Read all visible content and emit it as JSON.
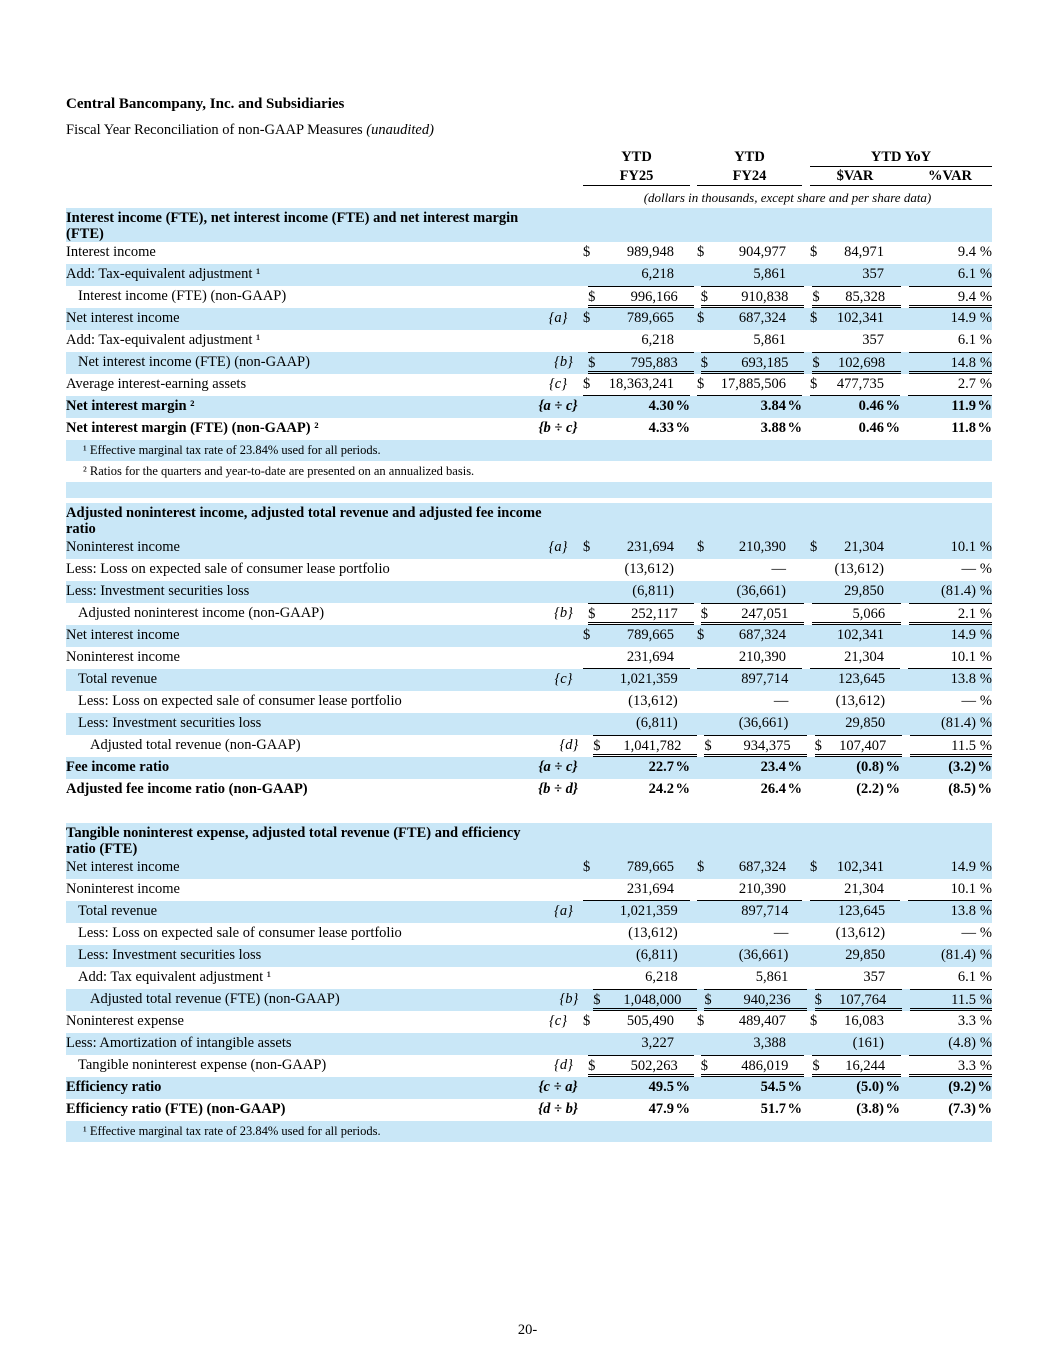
{
  "doc": {
    "company": "Central Bancompany, Inc. and Subsidiaries",
    "subtitle": "Fiscal Year Reconciliation of non-GAAP Measures",
    "subtitle_note": "(unaudited)",
    "units_note": "(dollars in thousands, except share and per share data)",
    "page_number": "20-"
  },
  "columns": {
    "ytd1": "YTD",
    "fy25": "FY25",
    "ytd2": "YTD",
    "fy24": "FY24",
    "yoy": "YTD YoY",
    "dvar": "$VAR",
    "pvar": "%VAR"
  },
  "colors": {
    "row_shade": "#c9e7f7"
  },
  "sections": [
    {
      "title": [
        "Interest income (FTE), net interest income (FTE) and net interest margin",
        "(FTE)"
      ],
      "rows": [
        {
          "label": "Interest income",
          "ind": 0,
          "ref": "",
          "shade": false,
          "c": [
            [
              "$",
              "989,948",
              ""
            ],
            [
              "$",
              "904,977",
              ""
            ],
            [
              "$",
              "84,971",
              ""
            ],
            [
              "",
              "9.4",
              "%"
            ]
          ]
        },
        {
          "label": "Add: Tax-equivalent adjustment ¹",
          "ind": 0,
          "ref": "",
          "shade": true,
          "c": [
            [
              "",
              "6,218",
              ""
            ],
            [
              "",
              "5,861",
              ""
            ],
            [
              "",
              "357",
              ""
            ],
            [
              "",
              "6.1",
              "%"
            ]
          ]
        },
        {
          "label": "Interest income (FTE) (non-GAAP)",
          "ind": 1,
          "ref": "",
          "shade": false,
          "top": true,
          "dbl": true,
          "c": [
            [
              "$",
              "996,166",
              ""
            ],
            [
              "$",
              "910,838",
              ""
            ],
            [
              "$",
              "85,328",
              ""
            ],
            [
              "",
              "9.4",
              "%"
            ]
          ]
        },
        {
          "label": "Net interest income",
          "ind": 0,
          "ref": "{a}",
          "shade": true,
          "c": [
            [
              "$",
              "789,665",
              ""
            ],
            [
              "$",
              "687,324",
              ""
            ],
            [
              "$",
              "102,341",
              ""
            ],
            [
              "",
              "14.9",
              "%"
            ]
          ]
        },
        {
          "label": "Add: Tax-equivalent adjustment ¹",
          "ind": 0,
          "ref": "",
          "shade": false,
          "c": [
            [
              "",
              "6,218",
              ""
            ],
            [
              "",
              "5,861",
              ""
            ],
            [
              "",
              "357",
              ""
            ],
            [
              "",
              "6.1",
              "%"
            ]
          ]
        },
        {
          "label": "Net interest income (FTE) (non-GAAP)",
          "ind": 1,
          "ref": "{b}",
          "shade": true,
          "top": true,
          "dbl": true,
          "c": [
            [
              "$",
              "795,883",
              ""
            ],
            [
              "$",
              "693,185",
              ""
            ],
            [
              "$",
              "102,698",
              ""
            ],
            [
              "",
              "14.8",
              "%"
            ]
          ]
        },
        {
          "label": "Average interest-earning assets",
          "ind": 0,
          "ref": "{c}",
          "shade": false,
          "bot": true,
          "c": [
            [
              "$",
              "18,363,241",
              ""
            ],
            [
              "$",
              "17,885,506",
              ""
            ],
            [
              "$",
              "477,735",
              ""
            ],
            [
              "",
              "2.7",
              "%"
            ]
          ]
        },
        {
          "label": "Net interest margin ²",
          "ind": 0,
          "ref": "{a ÷ c}",
          "bold": true,
          "shade": true,
          "c": [
            [
              "",
              "4.30",
              "%"
            ],
            [
              "",
              "3.84",
              "%"
            ],
            [
              "",
              "0.46",
              "%"
            ],
            [
              "",
              "11.9",
              "%"
            ]
          ]
        },
        {
          "label": "Net interest margin (FTE) (non-GAAP) ²",
          "ind": 0,
          "ref": "{b ÷ c}",
          "bold": true,
          "shade": false,
          "c": [
            [
              "",
              "4.33",
              "%"
            ],
            [
              "",
              "3.88",
              "%"
            ],
            [
              "",
              "0.46",
              "%"
            ],
            [
              "",
              "11.8",
              "%"
            ]
          ]
        },
        {
          "type": "note",
          "shade": true,
          "text": "¹ Effective marginal tax rate of 23.84% used for all periods."
        },
        {
          "type": "note",
          "shade": false,
          "text": "² Ratios for the quarters and year-to-date are presented on an annualized basis."
        },
        {
          "type": "spacer",
          "shade": true
        }
      ]
    },
    {
      "title": [
        "Adjusted noninterest income, adjusted total revenue and adjusted fee income",
        "ratio"
      ],
      "rows": [
        {
          "label": "Noninterest income",
          "ind": 0,
          "ref": "{a}",
          "shade": true,
          "c": [
            [
              "$",
              "231,694",
              ""
            ],
            [
              "$",
              "210,390",
              ""
            ],
            [
              "$",
              "21,304",
              ""
            ],
            [
              "",
              "10.1",
              "%"
            ]
          ]
        },
        {
          "label": "Less: Loss on expected sale of consumer lease portfolio",
          "ind": 0,
          "ref": "",
          "shade": false,
          "c": [
            [
              "",
              "(13,612)",
              ""
            ],
            [
              "",
              "—",
              ""
            ],
            [
              "",
              "(13,612)",
              ""
            ],
            [
              "",
              "—",
              "%"
            ]
          ]
        },
        {
          "label": "Less: Investment securities loss",
          "ind": 0,
          "ref": "",
          "shade": true,
          "c": [
            [
              "",
              "(6,811)",
              ""
            ],
            [
              "",
              "(36,661)",
              ""
            ],
            [
              "",
              "29,850",
              ""
            ],
            [
              "",
              "(81.4)",
              "%"
            ]
          ]
        },
        {
          "label": "Adjusted noninterest income (non-GAAP)",
          "ind": 1,
          "ref": "{b}",
          "shade": false,
          "top": true,
          "dbl": true,
          "c": [
            [
              "$",
              "252,117",
              ""
            ],
            [
              "$",
              "247,051",
              ""
            ],
            [
              "",
              "5,066",
              ""
            ],
            [
              "",
              "2.1",
              "%"
            ]
          ]
        },
        {
          "label": "Net interest income",
          "ind": 0,
          "ref": "",
          "shade": true,
          "c": [
            [
              "$",
              "789,665",
              ""
            ],
            [
              "$",
              "687,324",
              ""
            ],
            [
              "",
              "102,341",
              ""
            ],
            [
              "",
              "14.9",
              "%"
            ]
          ]
        },
        {
          "label": "Noninterest income",
          "ind": 0,
          "ref": "",
          "shade": false,
          "bot": true,
          "c": [
            [
              "",
              "231,694",
              ""
            ],
            [
              "",
              "210,390",
              ""
            ],
            [
              "",
              "21,304",
              ""
            ],
            [
              "",
              "10.1",
              "%"
            ]
          ]
        },
        {
          "label": "Total revenue",
          "ind": 1,
          "ref": "{c}",
          "shade": true,
          "c": [
            [
              "",
              "1,021,359",
              ""
            ],
            [
              "",
              "897,714",
              ""
            ],
            [
              "",
              "123,645",
              ""
            ],
            [
              "",
              "13.8",
              "%"
            ]
          ]
        },
        {
          "label": "Less: Loss on expected sale of consumer lease portfolio",
          "ind": 1,
          "ref": "",
          "shade": false,
          "c": [
            [
              "",
              "(13,612)",
              ""
            ],
            [
              "",
              "—",
              ""
            ],
            [
              "",
              "(13,612)",
              ""
            ],
            [
              "",
              "—",
              "%"
            ]
          ]
        },
        {
          "label": "Less: Investment securities loss",
          "ind": 1,
          "ref": "",
          "shade": true,
          "c": [
            [
              "",
              "(6,811)",
              ""
            ],
            [
              "",
              "(36,661)",
              ""
            ],
            [
              "",
              "29,850",
              ""
            ],
            [
              "",
              "(81.4)",
              "%"
            ]
          ]
        },
        {
          "label": "Adjusted total revenue (non-GAAP)",
          "ind": 2,
          "ref": "{d}",
          "shade": false,
          "top": true,
          "dbl": true,
          "c": [
            [
              "$",
              "1,041,782",
              ""
            ],
            [
              "$",
              "934,375",
              ""
            ],
            [
              "$",
              "107,407",
              ""
            ],
            [
              "",
              "11.5",
              "%"
            ]
          ]
        },
        {
          "label": "Fee income ratio",
          "ind": 0,
          "ref": "{a ÷ c}",
          "bold": true,
          "shade": true,
          "c": [
            [
              "",
              "22.7",
              "%"
            ],
            [
              "",
              "23.4",
              "%"
            ],
            [
              "",
              "(0.8)",
              "%"
            ],
            [
              "",
              "(3.2)",
              "%"
            ]
          ]
        },
        {
          "label": "Adjusted fee income ratio (non-GAAP)",
          "ind": 0,
          "ref": "{b ÷ d}",
          "bold": true,
          "shade": false,
          "c": [
            [
              "",
              "24.2",
              "%"
            ],
            [
              "",
              "26.4",
              "%"
            ],
            [
              "",
              "(2.2)",
              "%"
            ],
            [
              "",
              "(8.5)",
              "%"
            ]
          ]
        }
      ]
    },
    {
      "title": [
        "Tangible noninterest expense, adjusted total revenue (FTE) and efficiency",
        "ratio (FTE)"
      ],
      "rows": [
        {
          "label": "Net interest income",
          "ind": 0,
          "ref": "",
          "shade": true,
          "c": [
            [
              "$",
              "789,665",
              ""
            ],
            [
              "$",
              "687,324",
              ""
            ],
            [
              "$",
              "102,341",
              ""
            ],
            [
              "",
              "14.9",
              "%"
            ]
          ]
        },
        {
          "label": "Noninterest income",
          "ind": 0,
          "ref": "",
          "shade": false,
          "bot": true,
          "c": [
            [
              "",
              "231,694",
              ""
            ],
            [
              "",
              "210,390",
              ""
            ],
            [
              "",
              "21,304",
              ""
            ],
            [
              "",
              "10.1",
              "%"
            ]
          ]
        },
        {
          "label": "Total revenue",
          "ind": 1,
          "ref": "{a}",
          "shade": true,
          "c": [
            [
              "",
              "1,021,359",
              ""
            ],
            [
              "",
              "897,714",
              ""
            ],
            [
              "",
              "123,645",
              ""
            ],
            [
              "",
              "13.8",
              "%"
            ]
          ]
        },
        {
          "label": "Less: Loss on expected sale of consumer lease portfolio",
          "ind": 1,
          "ref": "",
          "shade": false,
          "c": [
            [
              "",
              "(13,612)",
              ""
            ],
            [
              "",
              "—",
              ""
            ],
            [
              "",
              "(13,612)",
              ""
            ],
            [
              "",
              "—",
              "%"
            ]
          ]
        },
        {
          "label": "Less: Investment securities loss",
          "ind": 1,
          "ref": "",
          "shade": true,
          "c": [
            [
              "",
              "(6,811)",
              ""
            ],
            [
              "",
              "(36,661)",
              ""
            ],
            [
              "",
              "29,850",
              ""
            ],
            [
              "",
              "(81.4)",
              "%"
            ]
          ]
        },
        {
          "label": "Add: Tax equivalent adjustment ¹",
          "ind": 1,
          "ref": "",
          "shade": false,
          "c": [
            [
              "",
              "6,218",
              ""
            ],
            [
              "",
              "5,861",
              ""
            ],
            [
              "",
              "357",
              ""
            ],
            [
              "",
              "6.1",
              "%"
            ]
          ]
        },
        {
          "label": "Adjusted total revenue (FTE) (non-GAAP)",
          "ind": 2,
          "ref": "{b}",
          "shade": true,
          "top": true,
          "dbl": true,
          "c": [
            [
              "$",
              "1,048,000",
              ""
            ],
            [
              "$",
              "940,236",
              ""
            ],
            [
              "$",
              "107,764",
              ""
            ],
            [
              "",
              "11.5",
              "%"
            ]
          ]
        },
        {
          "label": "Noninterest expense",
          "ind": 0,
          "ref": "{c}",
          "shade": false,
          "c": [
            [
              "$",
              "505,490",
              ""
            ],
            [
              "$",
              "489,407",
              ""
            ],
            [
              "$",
              "16,083",
              ""
            ],
            [
              "",
              "3.3",
              "%"
            ]
          ]
        },
        {
          "label": "Less: Amortization of intangible assets",
          "ind": 0,
          "ref": "",
          "shade": true,
          "c": [
            [
              "",
              "3,227",
              ""
            ],
            [
              "",
              "3,388",
              ""
            ],
            [
              "",
              "(161)",
              ""
            ],
            [
              "",
              "(4.8)",
              "%"
            ]
          ]
        },
        {
          "label": "Tangible noninterest expense (non-GAAP)",
          "ind": 1,
          "ref": "{d}",
          "shade": false,
          "top": true,
          "dbl": true,
          "c": [
            [
              "$",
              "502,263",
              ""
            ],
            [
              "$",
              "486,019",
              ""
            ],
            [
              "$",
              "16,244",
              ""
            ],
            [
              "",
              "3.3",
              "%"
            ]
          ]
        },
        {
          "label": "Efficiency ratio",
          "ind": 0,
          "ref": "{c ÷ a}",
          "bold": true,
          "shade": true,
          "c": [
            [
              "",
              "49.5",
              "%"
            ],
            [
              "",
              "54.5",
              "%"
            ],
            [
              "",
              "(5.0)",
              "%"
            ],
            [
              "",
              "(9.2)",
              "%"
            ]
          ]
        },
        {
          "label": "Efficiency ratio (FTE) (non-GAAP)",
          "ind": 0,
          "ref": "{d ÷ b}",
          "bold": true,
          "shade": false,
          "c": [
            [
              "",
              "47.9",
              "%"
            ],
            [
              "",
              "51.7",
              "%"
            ],
            [
              "",
              "(3.8)",
              "%"
            ],
            [
              "",
              "(7.3)",
              "%"
            ]
          ]
        },
        {
          "type": "note",
          "shade": true,
          "text": "¹ Effective marginal tax rate of 23.84% used for all periods."
        }
      ]
    }
  ]
}
